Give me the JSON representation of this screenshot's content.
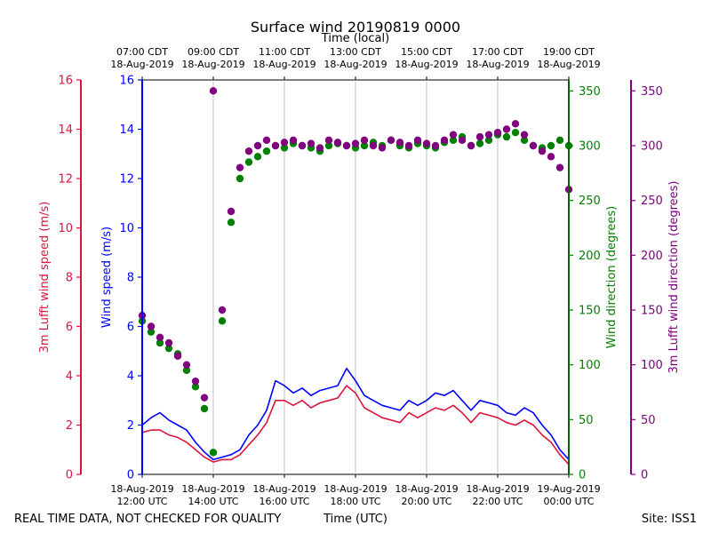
{
  "chart_data": {
    "type": "scatter",
    "title": "Surface wind 20190819 0000",
    "top_axis_label": "Time (local)",
    "xlabel": "Time (UTC)",
    "footer_left": "REAL TIME DATA, NOT CHECKED FOR QUALITY",
    "footer_right": "Site: ISS1",
    "x_range_hours_utc": [
      12,
      24
    ],
    "bottom_ticks": [
      {
        "hour": 12,
        "line1": "18-Aug-2019",
        "line2": "12:00 UTC"
      },
      {
        "hour": 14,
        "line1": "18-Aug-2019",
        "line2": "14:00 UTC"
      },
      {
        "hour": 16,
        "line1": "18-Aug-2019",
        "line2": "16:00 UTC"
      },
      {
        "hour": 18,
        "line1": "18-Aug-2019",
        "line2": "18:00 UTC"
      },
      {
        "hour": 20,
        "line1": "18-Aug-2019",
        "line2": "20:00 UTC"
      },
      {
        "hour": 22,
        "line1": "18-Aug-2019",
        "line2": "22:00 UTC"
      },
      {
        "hour": 24,
        "line1": "19-Aug-2019",
        "line2": "00:00 UTC"
      }
    ],
    "top_ticks": [
      {
        "hour": 12,
        "line1": "07:00 CDT",
        "line2": "18-Aug-2019"
      },
      {
        "hour": 14,
        "line1": "09:00 CDT",
        "line2": "18-Aug-2019"
      },
      {
        "hour": 16,
        "line1": "11:00 CDT",
        "line2": "18-Aug-2019"
      },
      {
        "hour": 18,
        "line1": "13:00 CDT",
        "line2": "18-Aug-2019"
      },
      {
        "hour": 20,
        "line1": "15:00 CDT",
        "line2": "18-Aug-2019"
      },
      {
        "hour": 22,
        "line1": "17:00 CDT",
        "line2": "18-Aug-2019"
      },
      {
        "hour": 24,
        "line1": "19:00 CDT",
        "line2": "18-Aug-2019"
      }
    ],
    "axes": {
      "lufft_speed": {
        "label": "3m Lufft wind speed (m/s)",
        "range": [
          0,
          16
        ],
        "ticks": [
          0,
          2,
          4,
          6,
          8,
          10,
          12,
          14,
          16
        ],
        "color": "#dc143c"
      },
      "wind_speed": {
        "label": "Wind speed (m/s)",
        "range": [
          0,
          16
        ],
        "ticks": [
          0,
          2,
          4,
          6,
          8,
          10,
          12,
          14,
          16
        ],
        "color": "#0000ff"
      },
      "wind_direction": {
        "label": "Wind direction (degrees)",
        "range": [
          0,
          360
        ],
        "ticks": [
          0,
          50,
          100,
          150,
          200,
          250,
          300,
          350
        ],
        "color": "#008000"
      },
      "lufft_direction": {
        "label": "3m Lufft wind direction (degrees)",
        "range": [
          0,
          360
        ],
        "ticks": [
          0,
          50,
          100,
          150,
          200,
          250,
          300,
          350
        ],
        "color": "#800080"
      }
    },
    "series": [
      {
        "name": "Wind speed (m/s)",
        "kind": "line",
        "axis": "wind_speed",
        "color": "#0000ff",
        "points": [
          [
            12.0,
            2.0
          ],
          [
            12.25,
            2.3
          ],
          [
            12.5,
            2.5
          ],
          [
            12.75,
            2.2
          ],
          [
            13.0,
            2.0
          ],
          [
            13.25,
            1.8
          ],
          [
            13.5,
            1.3
          ],
          [
            13.75,
            0.9
          ],
          [
            14.0,
            0.6
          ],
          [
            14.25,
            0.7
          ],
          [
            14.5,
            0.8
          ],
          [
            14.75,
            1.0
          ],
          [
            15.0,
            1.6
          ],
          [
            15.25,
            2.0
          ],
          [
            15.5,
            2.6
          ],
          [
            15.75,
            3.8
          ],
          [
            16.0,
            3.6
          ],
          [
            16.25,
            3.3
          ],
          [
            16.5,
            3.5
          ],
          [
            16.75,
            3.2
          ],
          [
            17.0,
            3.4
          ],
          [
            17.25,
            3.5
          ],
          [
            17.5,
            3.6
          ],
          [
            17.75,
            4.3
          ],
          [
            18.0,
            3.8
          ],
          [
            18.25,
            3.2
          ],
          [
            18.5,
            3.0
          ],
          [
            18.75,
            2.8
          ],
          [
            19.0,
            2.7
          ],
          [
            19.25,
            2.6
          ],
          [
            19.5,
            3.0
          ],
          [
            19.75,
            2.8
          ],
          [
            20.0,
            3.0
          ],
          [
            20.25,
            3.3
          ],
          [
            20.5,
            3.2
          ],
          [
            20.75,
            3.4
          ],
          [
            21.0,
            3.0
          ],
          [
            21.25,
            2.6
          ],
          [
            21.5,
            3.0
          ],
          [
            21.75,
            2.9
          ],
          [
            22.0,
            2.8
          ],
          [
            22.25,
            2.5
          ],
          [
            22.5,
            2.4
          ],
          [
            22.75,
            2.7
          ],
          [
            23.0,
            2.5
          ],
          [
            23.25,
            2.0
          ],
          [
            23.5,
            1.6
          ],
          [
            23.75,
            1.0
          ],
          [
            24.0,
            0.6
          ]
        ]
      },
      {
        "name": "3m Lufft wind speed (m/s)",
        "kind": "line",
        "axis": "lufft_speed",
        "color": "#dc143c",
        "points": [
          [
            12.0,
            1.7
          ],
          [
            12.25,
            1.8
          ],
          [
            12.5,
            1.8
          ],
          [
            12.75,
            1.6
          ],
          [
            13.0,
            1.5
          ],
          [
            13.25,
            1.3
          ],
          [
            13.5,
            1.0
          ],
          [
            13.75,
            0.7
          ],
          [
            14.0,
            0.5
          ],
          [
            14.25,
            0.6
          ],
          [
            14.5,
            0.6
          ],
          [
            14.75,
            0.8
          ],
          [
            15.0,
            1.2
          ],
          [
            15.25,
            1.6
          ],
          [
            15.5,
            2.1
          ],
          [
            15.75,
            3.0
          ],
          [
            16.0,
            3.0
          ],
          [
            16.25,
            2.8
          ],
          [
            16.5,
            3.0
          ],
          [
            16.75,
            2.7
          ],
          [
            17.0,
            2.9
          ],
          [
            17.25,
            3.0
          ],
          [
            17.5,
            3.1
          ],
          [
            17.75,
            3.6
          ],
          [
            18.0,
            3.3
          ],
          [
            18.25,
            2.7
          ],
          [
            18.5,
            2.5
          ],
          [
            18.75,
            2.3
          ],
          [
            19.0,
            2.2
          ],
          [
            19.25,
            2.1
          ],
          [
            19.5,
            2.5
          ],
          [
            19.75,
            2.3
          ],
          [
            20.0,
            2.5
          ],
          [
            20.25,
            2.7
          ],
          [
            20.5,
            2.6
          ],
          [
            20.75,
            2.8
          ],
          [
            21.0,
            2.5
          ],
          [
            21.25,
            2.1
          ],
          [
            21.5,
            2.5
          ],
          [
            21.75,
            2.4
          ],
          [
            22.0,
            2.3
          ],
          [
            22.25,
            2.1
          ],
          [
            22.5,
            2.0
          ],
          [
            22.75,
            2.2
          ],
          [
            23.0,
            2.0
          ],
          [
            23.25,
            1.6
          ],
          [
            23.5,
            1.3
          ],
          [
            23.75,
            0.8
          ],
          [
            24.0,
            0.4
          ]
        ]
      },
      {
        "name": "Wind direction (degrees)",
        "kind": "scatter",
        "axis": "wind_direction",
        "color": "#008000",
        "points": [
          [
            12.0,
            140
          ],
          [
            12.25,
            130
          ],
          [
            12.5,
            120
          ],
          [
            12.75,
            115
          ],
          [
            13.0,
            110
          ],
          [
            13.25,
            95
          ],
          [
            13.5,
            80
          ],
          [
            13.75,
            60
          ],
          [
            14.0,
            20
          ],
          [
            14.25,
            140
          ],
          [
            14.5,
            230
          ],
          [
            14.75,
            270
          ],
          [
            15.0,
            285
          ],
          [
            15.25,
            290
          ],
          [
            15.5,
            295
          ],
          [
            15.75,
            300
          ],
          [
            16.0,
            298
          ],
          [
            16.25,
            302
          ],
          [
            16.5,
            300
          ],
          [
            16.75,
            298
          ],
          [
            17.0,
            295
          ],
          [
            17.25,
            300
          ],
          [
            17.5,
            302
          ],
          [
            17.75,
            300
          ],
          [
            18.0,
            298
          ],
          [
            18.25,
            300
          ],
          [
            18.5,
            303
          ],
          [
            18.75,
            300
          ],
          [
            19.0,
            305
          ],
          [
            19.25,
            300
          ],
          [
            19.5,
            298
          ],
          [
            19.75,
            302
          ],
          [
            20.0,
            300
          ],
          [
            20.25,
            298
          ],
          [
            20.5,
            303
          ],
          [
            20.75,
            305
          ],
          [
            21.0,
            308
          ],
          [
            21.25,
            300
          ],
          [
            21.5,
            302
          ],
          [
            21.75,
            305
          ],
          [
            22.0,
            310
          ],
          [
            22.25,
            308
          ],
          [
            22.5,
            312
          ],
          [
            22.75,
            305
          ],
          [
            23.0,
            300
          ],
          [
            23.25,
            298
          ],
          [
            23.5,
            300
          ],
          [
            23.75,
            305
          ],
          [
            24.0,
            300
          ]
        ]
      },
      {
        "name": "3m Lufft wind direction (degrees)",
        "kind": "scatter",
        "axis": "lufft_direction",
        "color": "#800080",
        "points": [
          [
            12.0,
            145
          ],
          [
            12.25,
            135
          ],
          [
            12.5,
            125
          ],
          [
            12.75,
            120
          ],
          [
            13.0,
            108
          ],
          [
            13.25,
            100
          ],
          [
            13.5,
            85
          ],
          [
            13.75,
            70
          ],
          [
            14.0,
            350
          ],
          [
            14.25,
            150
          ],
          [
            14.5,
            240
          ],
          [
            14.75,
            280
          ],
          [
            15.0,
            295
          ],
          [
            15.25,
            300
          ],
          [
            15.5,
            305
          ],
          [
            15.75,
            300
          ],
          [
            16.0,
            303
          ],
          [
            16.25,
            305
          ],
          [
            16.5,
            300
          ],
          [
            16.75,
            302
          ],
          [
            17.0,
            298
          ],
          [
            17.25,
            305
          ],
          [
            17.5,
            303
          ],
          [
            17.75,
            300
          ],
          [
            18.0,
            302
          ],
          [
            18.25,
            305
          ],
          [
            18.5,
            300
          ],
          [
            18.75,
            298
          ],
          [
            19.0,
            305
          ],
          [
            19.25,
            303
          ],
          [
            19.5,
            300
          ],
          [
            19.75,
            305
          ],
          [
            20.0,
            302
          ],
          [
            20.25,
            300
          ],
          [
            20.5,
            305
          ],
          [
            20.75,
            310
          ],
          [
            21.0,
            305
          ],
          [
            21.25,
            300
          ],
          [
            21.5,
            308
          ],
          [
            21.75,
            310
          ],
          [
            22.0,
            312
          ],
          [
            22.25,
            315
          ],
          [
            22.5,
            320
          ],
          [
            22.75,
            310
          ],
          [
            23.0,
            300
          ],
          [
            23.25,
            295
          ],
          [
            23.5,
            290
          ],
          [
            23.75,
            280
          ],
          [
            24.0,
            260
          ]
        ]
      }
    ]
  }
}
